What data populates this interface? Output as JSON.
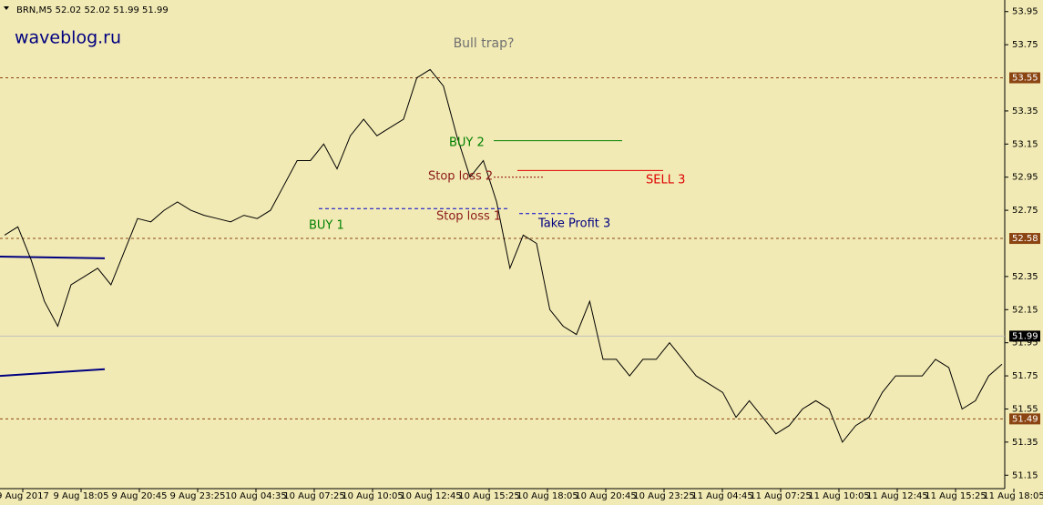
{
  "chart_data": {
    "type": "line",
    "header": "BRN,M5  52.02 52.02 51.99 51.99",
    "watermark": "waveblog.ru",
    "title": "Bull trap?",
    "color": "#000000",
    "values": [
      52.6,
      52.65,
      52.45,
      52.2,
      52.05,
      52.3,
      52.35,
      52.4,
      52.3,
      52.5,
      52.7,
      52.68,
      52.75,
      52.8,
      52.75,
      52.72,
      52.7,
      52.68,
      52.72,
      52.7,
      52.75,
      52.9,
      53.05,
      53.05,
      53.15,
      53.0,
      53.2,
      53.3,
      53.2,
      53.25,
      53.3,
      53.55,
      53.6,
      53.5,
      53.2,
      52.95,
      53.05,
      52.8,
      52.4,
      52.6,
      52.55,
      52.15,
      52.05,
      52.0,
      52.2,
      51.85,
      51.85,
      51.75,
      51.85,
      51.85,
      51.95,
      51.85,
      51.75,
      51.7,
      51.65,
      51.5,
      51.6,
      51.5,
      51.4,
      51.45,
      51.55,
      51.6,
      51.55,
      51.35,
      51.45,
      51.5,
      51.65,
      51.75,
      51.75,
      51.75,
      51.85,
      51.8,
      51.55,
      51.6,
      51.75,
      51.82
    ],
    "ylim": [
      51.08,
      54.02
    ],
    "yticks": [
      53.95,
      53.75,
      53.35,
      53.15,
      52.95,
      52.75,
      52.35,
      52.15,
      51.95,
      51.75,
      51.55,
      51.35,
      51.15
    ],
    "levels": [
      53.55,
      52.58,
      51.49
    ],
    "level_color": "#8b4513",
    "current_price": 51.99,
    "x_labels": [
      "9 Aug 2017",
      "9 Aug 18:05",
      "9 Aug 20:45",
      "9 Aug 23:25",
      "10 Aug 04:35",
      "10 Aug 07:25",
      "10 Aug 10:05",
      "10 Aug 12:45",
      "10 Aug 15:25",
      "10 Aug 18:05",
      "10 Aug 20:45",
      "10 Aug 23:25",
      "11 Aug 04:45",
      "11 Aug 07:25",
      "11 Aug 10:05",
      "11 Aug 12:45",
      "11 Aug 15:25",
      "11 Aug 18:05"
    ],
    "indicator_lines": [
      {
        "color": "#000080",
        "values": [
          52.47,
          52.46
        ]
      },
      {
        "color": "#000080",
        "values": [
          51.75,
          51.79
        ]
      }
    ],
    "trade_lines": [
      {
        "value": 52.76,
        "color": "#0000cc"
      },
      {
        "value": 53.17,
        "color": "#008000"
      },
      {
        "value": 52.99,
        "color": "#dd0000"
      },
      {
        "value": 52.95,
        "color": "#8b0000"
      },
      {
        "value": 52.73,
        "color": "#0000cc"
      }
    ],
    "annotations": [
      {
        "text": "BUY 1",
        "color": "#008000"
      },
      {
        "text": "BUY 2",
        "color": "#008000"
      },
      {
        "text": "SELL 3",
        "color": "#dd0000"
      },
      {
        "text": "Stop loss 2",
        "color": "#8b1a1a"
      },
      {
        "text": "Stop loss 1",
        "color": "#8b1a1a"
      },
      {
        "text": "Take Profit 3",
        "color": "#000080"
      }
    ]
  }
}
